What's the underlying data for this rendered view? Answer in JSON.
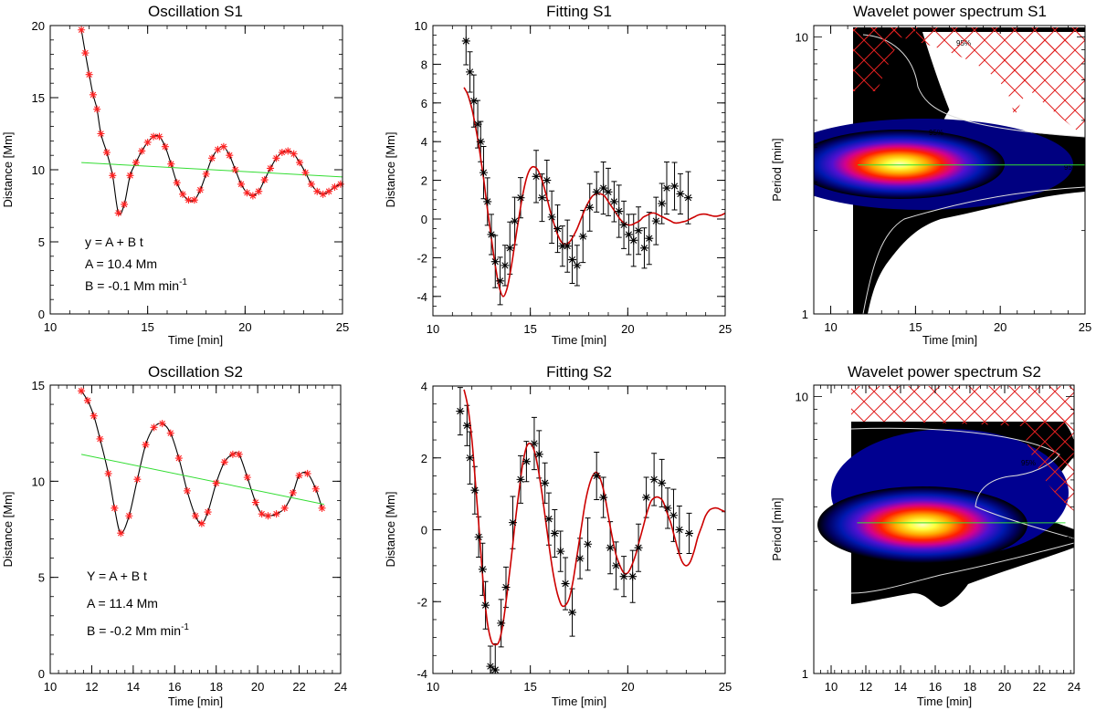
{
  "colors": {
    "marker": "#ff2020",
    "fit_curve": "#cc0000",
    "trend_line": "#33dd33",
    "hatch": "#e02020",
    "contour": "#dddddd",
    "errorbar": "#000000"
  },
  "chart_data": [
    {
      "id": "osc-s1",
      "type": "line",
      "title": "Oscillation S1",
      "xlabel": "Time [min]",
      "ylabel": "Distance [Mm]",
      "xlim": [
        10,
        25
      ],
      "ylim": [
        0,
        20
      ],
      "xticks": [
        10,
        15,
        20,
        25
      ],
      "yticks": [
        0,
        5,
        10,
        15,
        20
      ],
      "annotations": [
        "y = A + B t",
        "A = 10.4 Mm",
        "B = -0.1 Mm min"
      ],
      "annotation_superscript": "-1",
      "series": [
        {
          "role": "data",
          "x": [
            11.6,
            11.8,
            12.0,
            12.2,
            12.4,
            12.6,
            12.9,
            13.2,
            13.5,
            13.8,
            14.1,
            14.4,
            14.7,
            15.0,
            15.3,
            15.6,
            15.9,
            16.2,
            16.5,
            16.8,
            17.1,
            17.4,
            17.7,
            18.0,
            18.3,
            18.6,
            18.9,
            19.2,
            19.5,
            19.8,
            20.1,
            20.4,
            20.7,
            21.0,
            21.3,
            21.6,
            21.9,
            22.2,
            22.5,
            22.8,
            23.1,
            23.4,
            23.7,
            24.0,
            24.3,
            24.6,
            24.9
          ],
          "y": [
            19.7,
            18.1,
            16.6,
            15.2,
            14.2,
            12.5,
            11.2,
            9.6,
            7.0,
            7.6,
            9.6,
            10.5,
            11.3,
            11.9,
            12.3,
            12.3,
            11.6,
            10.4,
            9.1,
            8.3,
            7.9,
            7.9,
            8.6,
            9.7,
            10.8,
            11.4,
            11.6,
            11.0,
            10.0,
            9.0,
            8.4,
            8.2,
            8.5,
            9.3,
            10.1,
            10.8,
            11.2,
            11.3,
            11.1,
            10.5,
            9.8,
            9.0,
            8.5,
            8.3,
            8.5,
            8.8,
            9.0
          ]
        },
        {
          "role": "trend",
          "x": [
            11.6,
            25.0
          ],
          "y": [
            10.5,
            9.5
          ]
        }
      ]
    },
    {
      "id": "fit-s1",
      "type": "scatter",
      "title": "Fitting S1",
      "xlabel": "Time [min]",
      "ylabel": "Distance [Mm]",
      "xlim": [
        10,
        25
      ],
      "ylim": [
        -5,
        10
      ],
      "xticks": [
        10,
        15,
        20,
        25
      ],
      "yticks": [
        -4,
        -2,
        0,
        2,
        4,
        6,
        8,
        10
      ],
      "series": [
        {
          "role": "data",
          "x": [
            11.7,
            11.9,
            12.1,
            12.3,
            12.45,
            12.6,
            12.8,
            13.0,
            13.2,
            13.45,
            13.7,
            13.95,
            14.2,
            14.5,
            15.3,
            15.6,
            15.85,
            16.1,
            16.4,
            16.65,
            16.9,
            17.15,
            17.4,
            17.7,
            18.05,
            18.4,
            18.75,
            19.0,
            19.3,
            19.55,
            19.8,
            20.05,
            20.3,
            20.55,
            20.85,
            21.1,
            21.45,
            21.75,
            22.0,
            22.4,
            22.7,
            23.1
          ],
          "y": [
            9.2,
            7.6,
            6.1,
            4.9,
            4.0,
            2.4,
            0.9,
            -0.8,
            -2.2,
            -3.2,
            -2.4,
            -1.5,
            -0.1,
            1.1,
            2.2,
            1.1,
            2.0,
            0.1,
            -0.5,
            -1.4,
            -1.4,
            -2.1,
            -2.4,
            -0.9,
            0.6,
            1.4,
            1.6,
            1.4,
            0.9,
            0.4,
            -0.3,
            -0.8,
            -1.1,
            -0.6,
            -1.5,
            -1.0,
            -0.1,
            0.8,
            1.6,
            1.7,
            1.3,
            1.1
          ]
        },
        {
          "role": "fit",
          "x": [
            11.6,
            11.8,
            12.0,
            12.2,
            12.4,
            12.6,
            12.8,
            13.0,
            13.2,
            13.4,
            13.6,
            13.8,
            14.0,
            14.2,
            14.4,
            14.6,
            14.8,
            15.0,
            15.2,
            15.4,
            15.6,
            15.8,
            16.0,
            16.2,
            16.4,
            16.6,
            16.8,
            17.0,
            17.2,
            17.4,
            17.6,
            17.8,
            18.0,
            18.2,
            18.4,
            18.6,
            18.8,
            19.0,
            19.2,
            19.4,
            19.6,
            19.8,
            20.0,
            20.2,
            20.4,
            20.6,
            20.8,
            21.0,
            21.2,
            21.4,
            21.6,
            21.8,
            22.0,
            22.2,
            22.4,
            22.6,
            22.8,
            23.0,
            23.2,
            23.4,
            23.6,
            23.8,
            24.0,
            24.2,
            24.4,
            24.6,
            24.8,
            25.0
          ],
          "y": [
            6.8,
            6.4,
            5.7,
            4.7,
            3.5,
            2.1,
            0.5,
            -1.0,
            -2.4,
            -3.5,
            -4.0,
            -3.6,
            -2.6,
            -1.3,
            0.0,
            1.2,
            2.1,
            2.6,
            2.7,
            2.5,
            2.0,
            1.3,
            0.5,
            -0.2,
            -0.8,
            -1.2,
            -1.3,
            -1.2,
            -0.9,
            -0.5,
            0.0,
            0.5,
            0.9,
            1.2,
            1.3,
            1.3,
            1.2,
            0.9,
            0.6,
            0.3,
            0.0,
            -0.2,
            -0.3,
            -0.3,
            -0.2,
            -0.1,
            0.1,
            0.2,
            0.3,
            0.3,
            0.2,
            0.1,
            0.0,
            -0.1,
            -0.2,
            -0.2,
            -0.15,
            -0.1,
            0.0,
            0.1,
            0.2,
            0.25,
            0.25,
            0.2,
            0.15,
            0.15,
            0.2,
            0.3
          ]
        }
      ]
    },
    {
      "id": "wav-s1",
      "type": "heatmap",
      "title": "Wavelet power spectrum S1",
      "xlabel": "Time [min]",
      "ylabel": "Period [min]",
      "xlim": [
        9,
        25
      ],
      "ylim": [
        1,
        11
      ],
      "yscale": "log",
      "xticks": [
        10,
        15,
        20,
        25
      ],
      "yticks": [
        1,
        10
      ],
      "contour_label": "95%",
      "peak": {
        "x": 13.3,
        "y": 3.45
      },
      "peak_line_y": 3.45,
      "power_region_x": [
        11.6,
        25
      ]
    },
    {
      "id": "osc-s2",
      "type": "line",
      "title": "Oscillation S2",
      "xlabel": "Time [min]",
      "ylabel": "Distance [Mm]",
      "xlim": [
        10,
        24
      ],
      "ylim": [
        0,
        15
      ],
      "xticks": [
        10,
        12,
        14,
        16,
        18,
        20,
        22,
        24
      ],
      "yticks": [
        0,
        5,
        10,
        15
      ],
      "annotations": [
        "Y = A + B t",
        "A = 11.4 Mm",
        "B = -0.2 Mm min"
      ],
      "annotation_superscript": "-1",
      "series": [
        {
          "role": "data",
          "x": [
            11.5,
            11.8,
            12.1,
            12.4,
            12.8,
            13.1,
            13.4,
            13.8,
            14.2,
            14.6,
            15.0,
            15.4,
            15.8,
            16.2,
            16.6,
            17.0,
            17.3,
            17.6,
            18.0,
            18.4,
            18.8,
            19.1,
            19.5,
            19.9,
            20.2,
            20.5,
            20.9,
            21.3,
            21.7,
            22.0,
            22.4,
            22.8,
            23.1
          ],
          "y": [
            14.7,
            14.2,
            13.4,
            12.2,
            10.4,
            8.6,
            7.3,
            8.2,
            10.1,
            11.9,
            12.8,
            13.0,
            12.5,
            11.2,
            9.5,
            8.2,
            7.8,
            8.4,
            9.9,
            11.0,
            11.4,
            11.4,
            10.2,
            8.9,
            8.3,
            8.2,
            8.3,
            8.6,
            9.4,
            10.3,
            10.4,
            9.6,
            8.6
          ]
        },
        {
          "role": "trend",
          "x": [
            11.5,
            23.2
          ],
          "y": [
            11.4,
            8.8
          ]
        }
      ]
    },
    {
      "id": "fit-s2",
      "type": "scatter",
      "title": "Fitting S2",
      "xlabel": "Time [min]",
      "ylabel": "Distance [Mm]",
      "xlim": [
        10,
        25
      ],
      "ylim": [
        -4,
        4
      ],
      "xticks": [
        10,
        15,
        20,
        25
      ],
      "yticks": [
        -4,
        -2,
        0,
        2,
        4
      ],
      "series": [
        {
          "role": "data",
          "x": [
            11.4,
            11.75,
            11.9,
            12.15,
            12.35,
            12.55,
            12.7,
            12.95,
            13.2,
            13.5,
            13.75,
            14.1,
            14.5,
            14.8,
            15.2,
            15.45,
            15.75,
            15.95,
            16.25,
            16.55,
            16.8,
            17.15,
            17.55,
            17.95,
            18.4,
            18.75,
            19.1,
            19.4,
            19.8,
            20.25,
            20.55,
            20.95,
            21.35,
            21.75,
            22.05,
            22.35,
            22.65,
            23.15
          ],
          "y": [
            3.3,
            2.9,
            2.0,
            1.1,
            -0.2,
            -1.1,
            -2.1,
            -3.8,
            -3.9,
            -2.6,
            -1.6,
            0.2,
            1.4,
            1.9,
            2.4,
            2.1,
            1.3,
            0.3,
            -0.1,
            -0.6,
            -1.5,
            -2.3,
            -0.8,
            -0.4,
            1.5,
            0.9,
            -0.5,
            -1.0,
            -1.3,
            -1.3,
            -0.5,
            0.9,
            1.4,
            1.3,
            0.6,
            0.4,
            0.0,
            -0.1
          ]
        },
        {
          "role": "fit",
          "x": [
            11.6,
            11.8,
            12.0,
            12.2,
            12.4,
            12.6,
            12.8,
            13.0,
            13.2,
            13.4,
            13.6,
            13.8,
            14.0,
            14.2,
            14.4,
            14.6,
            14.8,
            15.0,
            15.2,
            15.4,
            15.6,
            15.8,
            16.0,
            16.2,
            16.4,
            16.6,
            16.8,
            17.0,
            17.2,
            17.4,
            17.6,
            17.8,
            18.0,
            18.2,
            18.4,
            18.6,
            18.8,
            19.0,
            19.2,
            19.4,
            19.6,
            19.8,
            20.0,
            20.2,
            20.4,
            20.6,
            20.8,
            21.0,
            21.2,
            21.4,
            21.6,
            21.8,
            22.0,
            22.2,
            22.4,
            22.6,
            22.8,
            23.0,
            23.2,
            23.4,
            23.6,
            23.8,
            24.0,
            24.2,
            24.4,
            24.6,
            24.8,
            25.0
          ],
          "y": [
            3.9,
            3.4,
            2.5,
            1.2,
            -0.2,
            -1.6,
            -2.6,
            -3.1,
            -3.2,
            -3.1,
            -2.6,
            -1.8,
            -0.9,
            0.1,
            1.0,
            1.8,
            2.3,
            2.4,
            2.2,
            1.7,
            1.0,
            0.2,
            -0.6,
            -1.3,
            -1.8,
            -2.1,
            -2.1,
            -1.9,
            -1.4,
            -0.7,
            0.0,
            0.7,
            1.2,
            1.5,
            1.6,
            1.4,
            1.0,
            0.4,
            -0.2,
            -0.7,
            -1.0,
            -1.2,
            -1.2,
            -1.0,
            -0.7,
            -0.3,
            0.1,
            0.5,
            0.8,
            0.9,
            0.9,
            0.8,
            0.5,
            0.2,
            -0.2,
            -0.6,
            -0.9,
            -1.0,
            -0.9,
            -0.6,
            -0.2,
            0.1,
            0.4,
            0.55,
            0.6,
            0.6,
            0.55,
            0.5
          ]
        }
      ]
    },
    {
      "id": "wav-s2",
      "type": "heatmap",
      "title": "Wavelet power spectrum S2",
      "xlabel": "Time [min]",
      "ylabel": "Period [min]",
      "xlim": [
        9,
        24
      ],
      "ylim": [
        1,
        11
      ],
      "yscale": "log",
      "xticks": [
        10,
        12,
        14,
        16,
        18,
        20,
        22,
        24
      ],
      "yticks": [
        1,
        10
      ],
      "contour_label": "95%",
      "peak": {
        "x": 14.3,
        "y": 3.5
      },
      "peak_line_y": 3.5,
      "power_region_x": [
        11.5,
        23.5
      ]
    }
  ]
}
